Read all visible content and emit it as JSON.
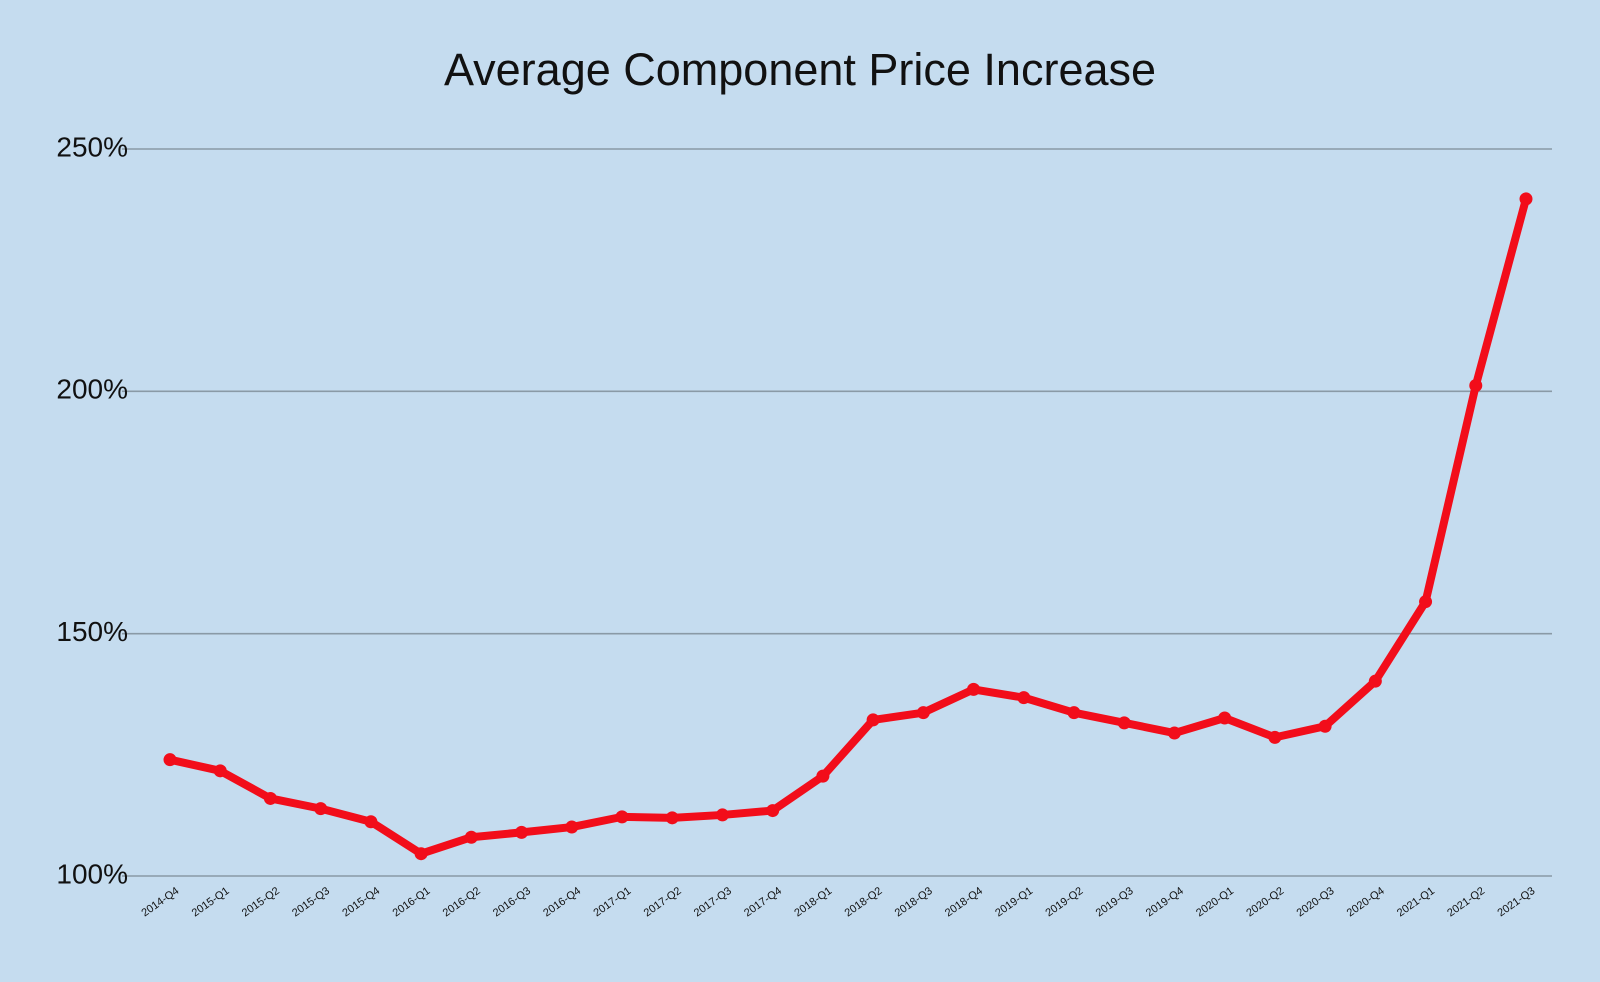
{
  "chart_data": {
    "type": "line",
    "title": "Average Component Price Increase",
    "categories": [
      "2014-Q4",
      "2015-Q1",
      "2015-Q2",
      "2015-Q3",
      "2015-Q4",
      "2016-Q1",
      "2016-Q2",
      "2016-Q3",
      "2016-Q4",
      "2017-Q1",
      "2017-Q2",
      "2017-Q3",
      "2017-Q4",
      "2018-Q1",
      "2018-Q2",
      "2018-Q3",
      "2018-Q4",
      "2019-Q1",
      "2019-Q2",
      "2019-Q3",
      "2019-Q4",
      "2020-Q1",
      "2020-Q2",
      "2020-Q3",
      "2020-Q4",
      "2021-Q1",
      "2021-Q2",
      "2021-Q3"
    ],
    "values": [
      124.0,
      121.7,
      116.0,
      113.9,
      111.2,
      104.6,
      108.0,
      109.0,
      110.1,
      112.2,
      112.0,
      112.6,
      113.5,
      120.6,
      132.2,
      133.7,
      138.5,
      136.8,
      133.7,
      131.6,
      129.5,
      132.6,
      128.6,
      130.9,
      140.2,
      156.6,
      201.2,
      239.7
    ],
    "color": "#f20d1a",
    "ylim": [
      100,
      250
    ],
    "yticks": [
      {
        "value": 100,
        "label": "100%"
      },
      {
        "value": 150,
        "label": "150%"
      },
      {
        "value": 200,
        "label": "200%"
      },
      {
        "value": 250,
        "label": "250%"
      }
    ],
    "grid": true
  }
}
